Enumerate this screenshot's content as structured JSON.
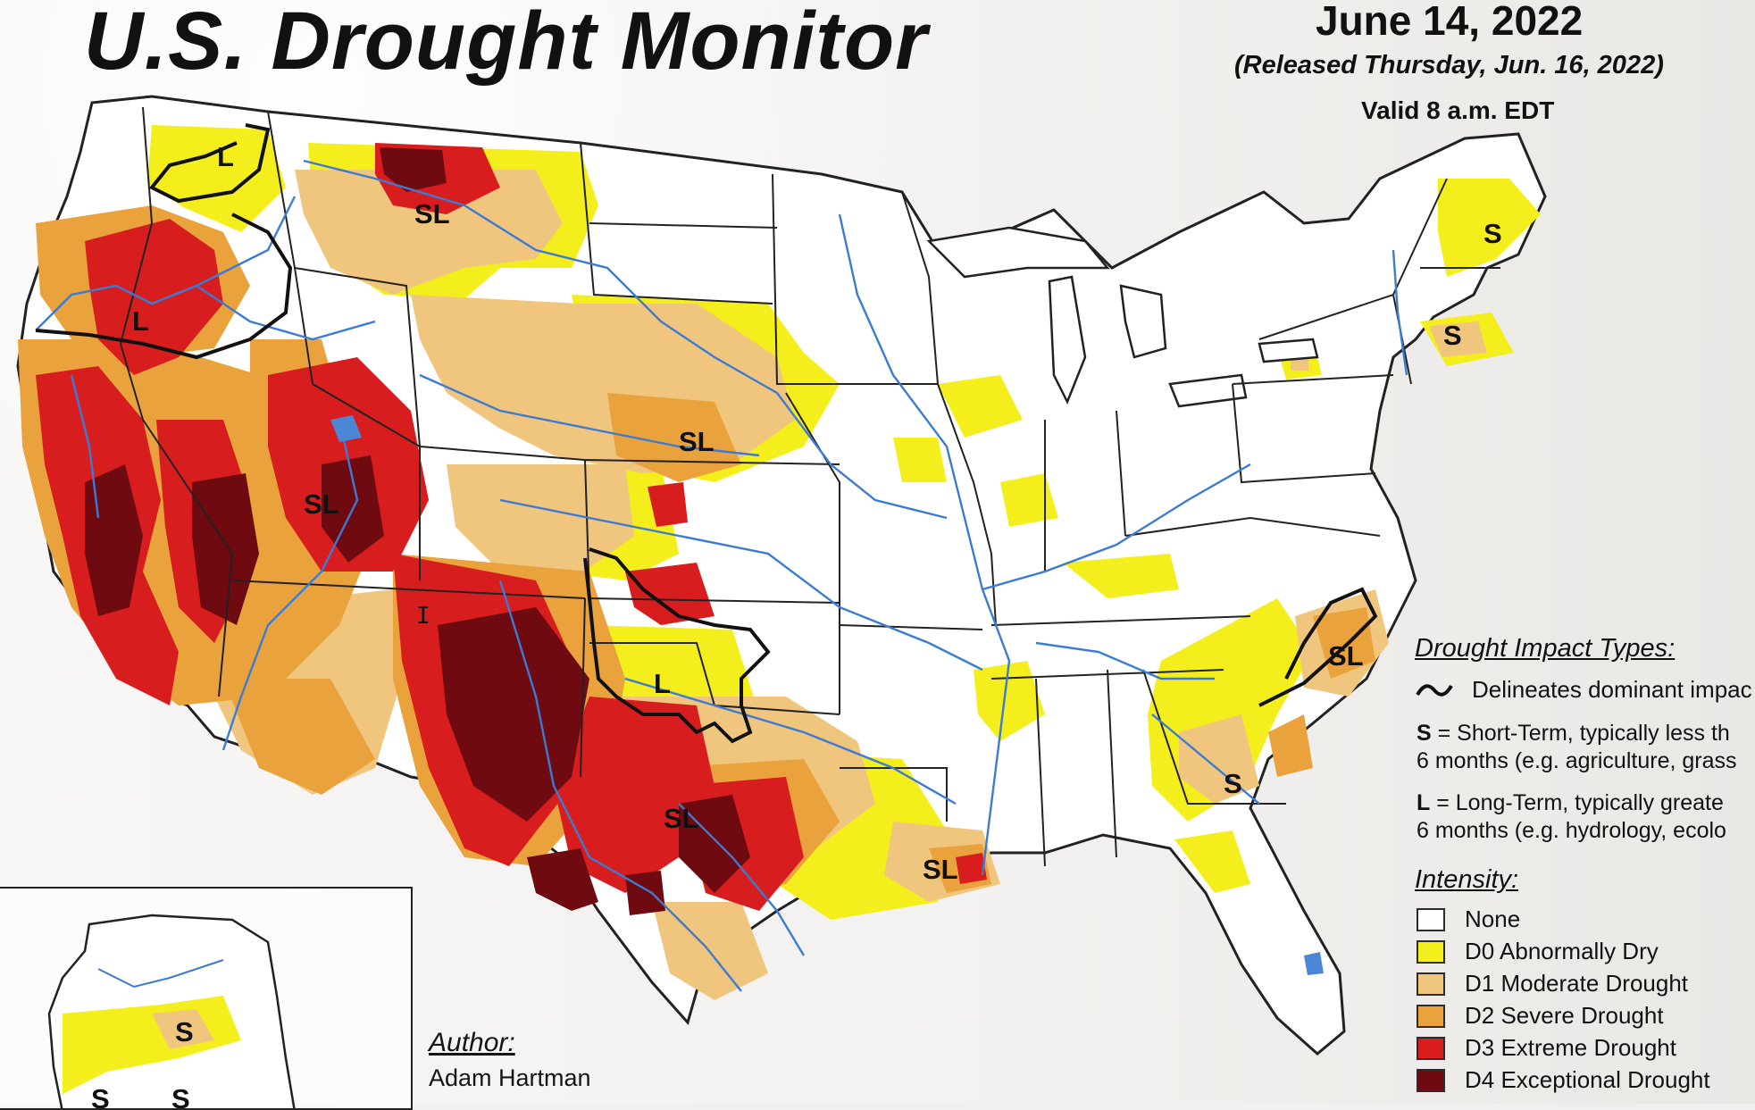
{
  "header": {
    "title": "U.S. Drought Monitor",
    "date": "June 14, 2022",
    "released": "(Released Thursday, Jun. 16, 2022)",
    "valid": "Valid 8 a.m. EDT"
  },
  "impact_legend": {
    "title": "Drought Impact Types:",
    "delineates": "Delineates dominant impac",
    "short_term_key": "S",
    "short_term_line1": " = Short-Term, typically less th",
    "short_term_line2": "6 months (e.g. agriculture, grass",
    "long_term_key": "L",
    "long_term_line1": " = Long-Term, typically greate",
    "long_term_line2": "6 months (e.g. hydrology, ecolo"
  },
  "intensity_legend": {
    "title": "Intensity:",
    "items": [
      {
        "label": "None",
        "color": "#ffffff"
      },
      {
        "label": "D0 Abnormally Dry",
        "color": "#ffff00"
      },
      {
        "label": "D1 Moderate Drought",
        "color": "#fcd37f"
      },
      {
        "label": "D2 Severe Drought",
        "color": "#ffaa00"
      },
      {
        "label": "D3 Extreme Drought",
        "color": "#e60000"
      },
      {
        "label": "D4 Exceptional Drought",
        "color": "#730000"
      }
    ]
  },
  "author": {
    "label": "Author:",
    "name": "Adam Hartman"
  },
  "map_labels": {
    "pnw_l": "L",
    "or_l": "L",
    "mt_sl": "SL",
    "ut_sl": "SL",
    "ne_sl": "SL",
    "ok_l": "L",
    "tx_sl": "SL",
    "la_sl": "SL",
    "nc_sl": "SL",
    "ga_s": "S",
    "me_s": "S",
    "ma_s": "S",
    "ak_s1": "S",
    "ak_s2": "S",
    "ak_s3": "S"
  },
  "map_colors": {
    "background": "#ffffff",
    "d0": "#f4ef1c",
    "d1": "#f0c57e",
    "d2": "#e9a23c",
    "d3": "#d81d1e",
    "d4": "#6f0b10",
    "border": "#222222",
    "river": "#3b7bd4",
    "impact_line": "#111111"
  },
  "cursor_icon": "I"
}
